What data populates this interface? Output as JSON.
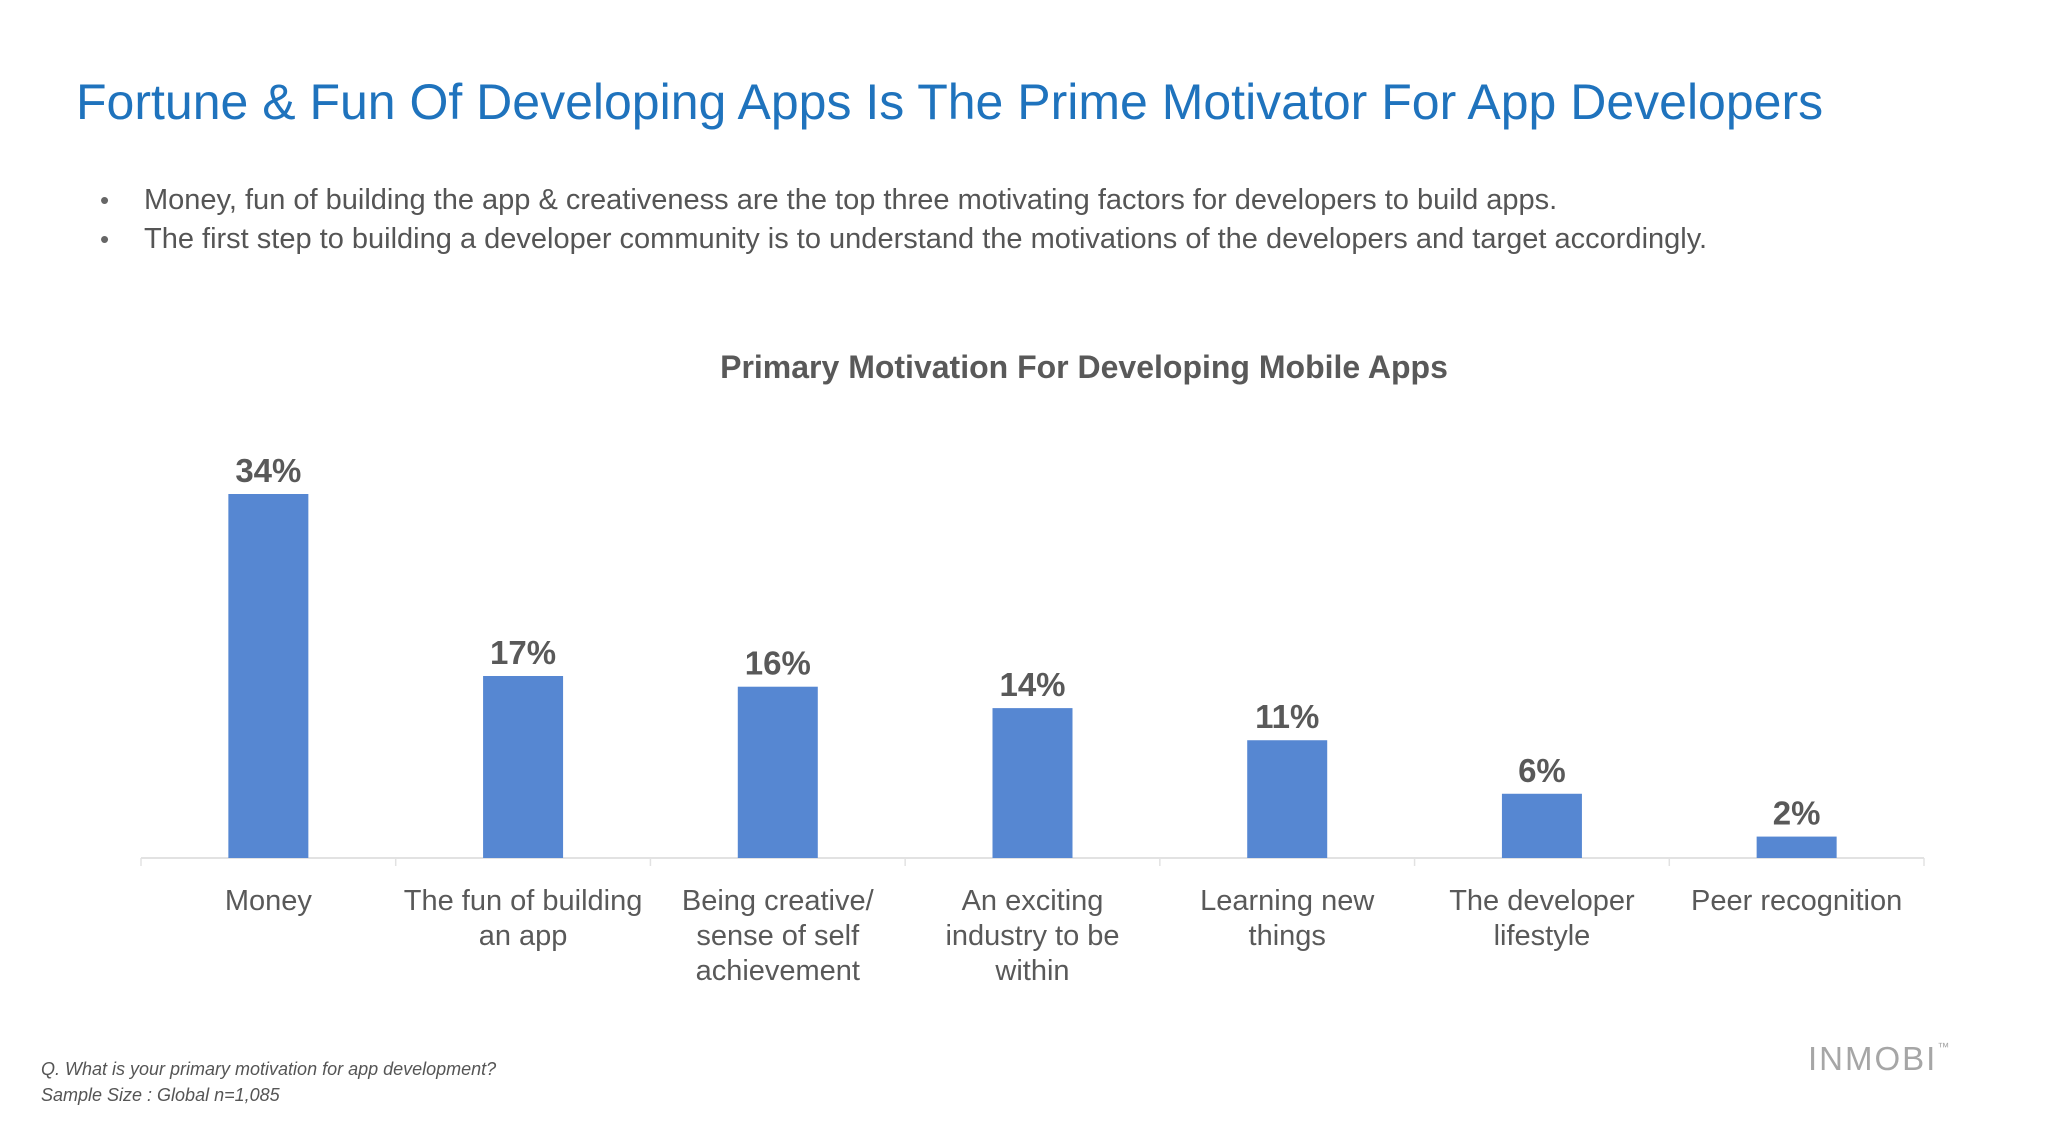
{
  "slide": {
    "title": "Fortune & Fun Of Developing Apps Is The Prime Motivator For App Developers",
    "bullet_symbol": "•",
    "bullets": [
      "Money, fun of building the app & creativeness are the top three motivating factors for developers to build apps.",
      "The first step to building a developer community is to understand the motivations of the developers and target accordingly."
    ]
  },
  "chart_data": {
    "type": "bar",
    "title": "Primary Motivation For Developing Mobile Apps",
    "categories": [
      [
        "Money"
      ],
      [
        "The fun of building",
        "an app"
      ],
      [
        "Being creative/",
        "sense of self",
        "achievement"
      ],
      [
        "An exciting",
        "industry to be",
        "within"
      ],
      [
        "Learning  new",
        "things"
      ],
      [
        "The developer",
        "lifestyle"
      ],
      [
        "Peer recognition"
      ]
    ],
    "values": [
      34,
      17,
      16,
      14,
      11,
      6,
      2
    ],
    "value_labels": [
      "34%",
      "17%",
      "16%",
      "14%",
      "11%",
      "6%",
      "2%"
    ],
    "unit": "%",
    "ylim": [
      0,
      34
    ],
    "grid": false,
    "legend": "none",
    "bar_color": "#5687d2"
  },
  "footnotes": {
    "question": "Q. What is your primary motivation for app development?",
    "sample": "Sample Size :  Global n=1,085"
  },
  "logo": {
    "text": "INMOBI",
    "mark": "™"
  },
  "colors": {
    "title": "#1f73bd",
    "text": "#595959",
    "bar": "#5687d2"
  }
}
